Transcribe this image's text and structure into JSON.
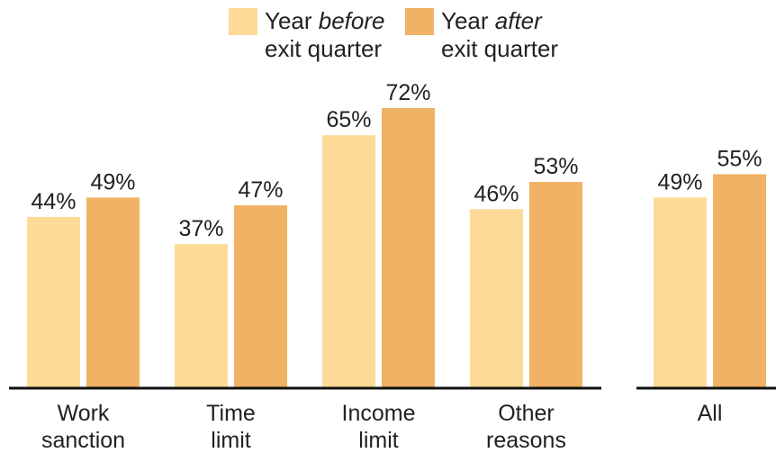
{
  "chart_data": {
    "type": "bar",
    "title": "",
    "xlabel": "",
    "ylabel": "",
    "ylim": [
      0,
      80
    ],
    "grid": false,
    "legend_position": "top-center",
    "value_suffix": "%",
    "categories": [
      [
        "Work",
        "sanction"
      ],
      [
        "Time",
        "limit"
      ],
      [
        "Income",
        "limit"
      ],
      [
        "Other",
        "reasons"
      ],
      [
        "All"
      ]
    ],
    "series": [
      {
        "name": "Year before exit quarter",
        "name_lines": [
          [
            "Year ",
            "before"
          ],
          [
            "exit quarter"
          ]
        ],
        "color": "#FDDA97",
        "values": [
          44,
          37,
          65,
          46,
          49
        ]
      },
      {
        "name": "Year after exit quarter",
        "name_lines": [
          [
            "Year ",
            "after"
          ],
          [
            "exit quarter"
          ]
        ],
        "color": "#F0B264",
        "values": [
          49,
          47,
          72,
          53,
          55
        ]
      }
    ]
  }
}
